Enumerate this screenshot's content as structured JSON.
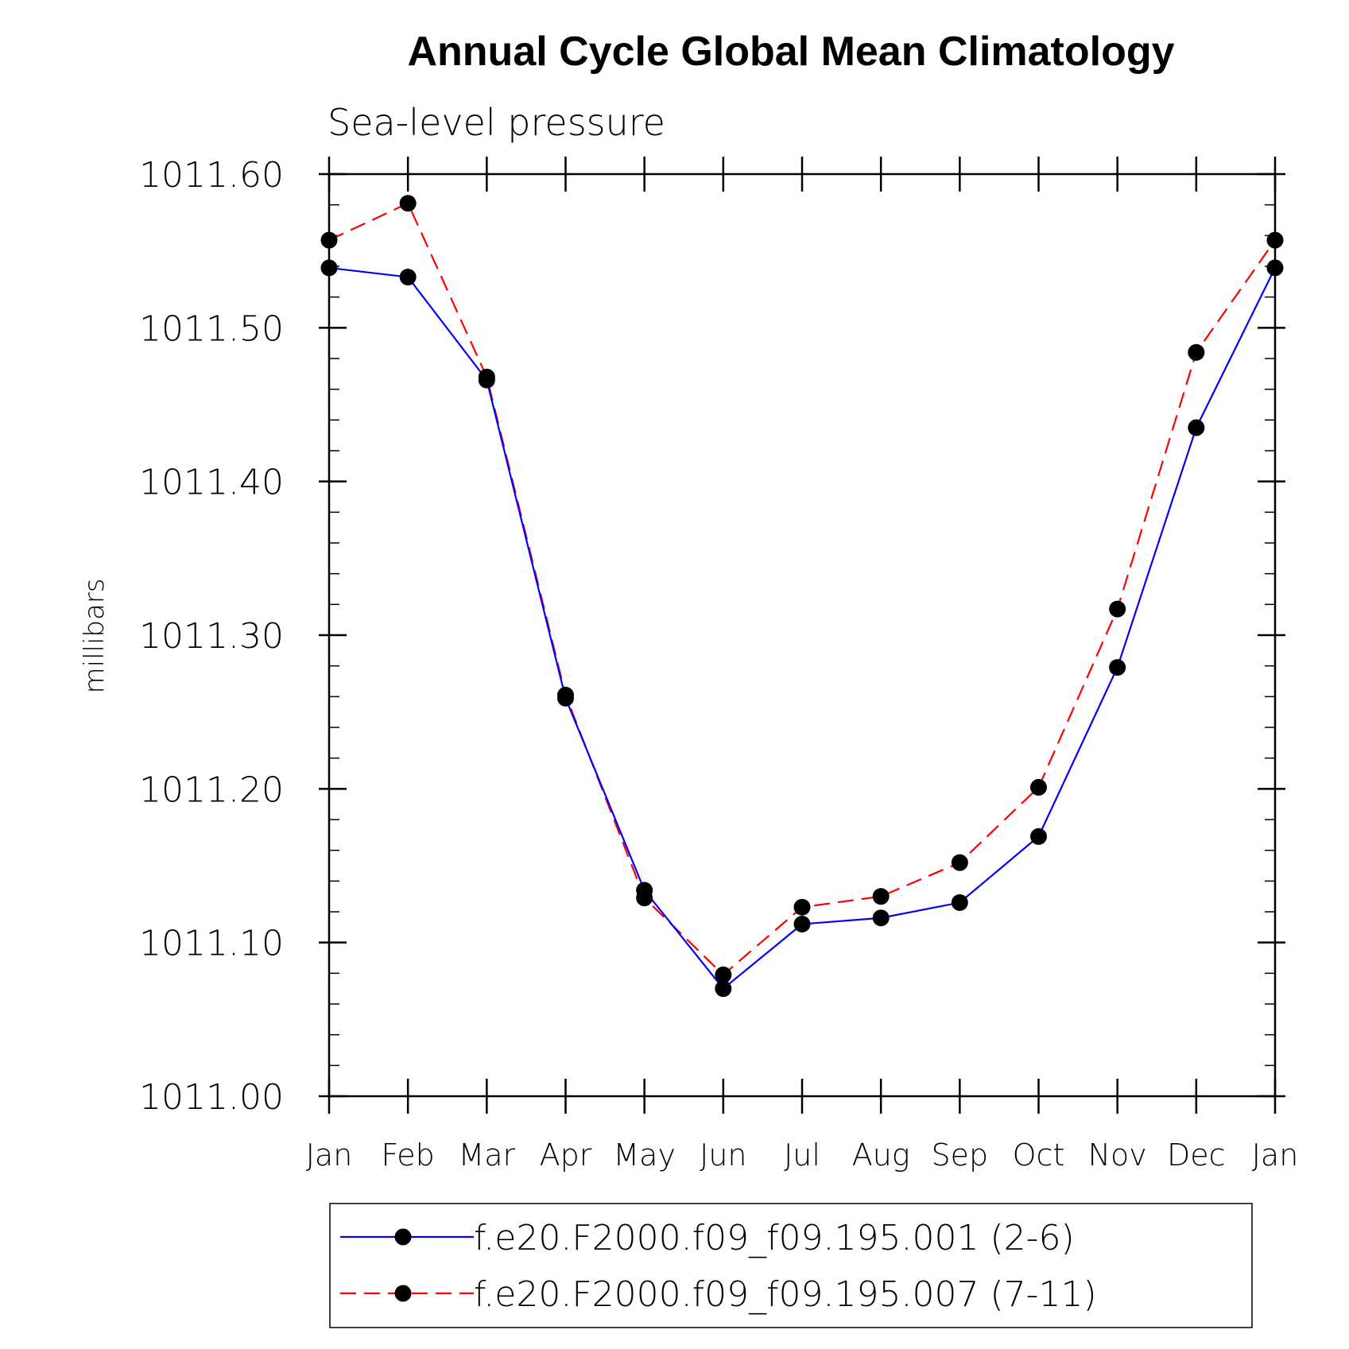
{
  "chart_data": {
    "type": "line",
    "title": "Annual Cycle Global Mean Climatology",
    "subtitle": "Sea-level pressure",
    "ylabel": "millibars",
    "xlabel": "",
    "categories": [
      "Jan",
      "Feb",
      "Mar",
      "Apr",
      "May",
      "Jun",
      "Jul",
      "Aug",
      "Sep",
      "Oct",
      "Nov",
      "Dec",
      "Jan"
    ],
    "ylim": [
      1011.0,
      1011.6
    ],
    "yticks": [
      "1011.00",
      "1011.10",
      "1011.20",
      "1011.30",
      "1011.40",
      "1011.50",
      "1011.60"
    ],
    "series": [
      {
        "name": "f.e20.F2000.f09_f09.195.001 (2-6)",
        "color": "#0000ff",
        "dash": "solid",
        "marker": "circle",
        "values": [
          1011.539,
          1011.533,
          1011.466,
          1011.259,
          1011.134,
          1011.07,
          1011.112,
          1011.116,
          1011.126,
          1011.169,
          1011.279,
          1011.435,
          1011.539
        ]
      },
      {
        "name": "f.e20.F2000.f09_f09.195.007 (7-11)",
        "color": "#ff0000",
        "dash": "dashed",
        "marker": "circle",
        "values": [
          1011.557,
          1011.581,
          1011.468,
          1011.261,
          1011.129,
          1011.079,
          1011.123,
          1011.13,
          1011.152,
          1011.201,
          1011.317,
          1011.484,
          1011.557
        ]
      }
    ],
    "legend_position": "bottom",
    "grid": false
  }
}
